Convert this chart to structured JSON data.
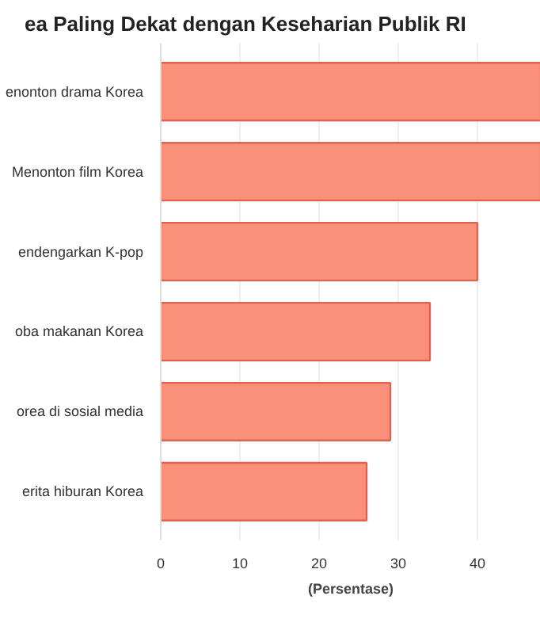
{
  "chart_data": {
    "type": "bar",
    "orientation": "horizontal",
    "title": "ea Paling Dekat dengan Keseharian Publik RI",
    "xlabel": "(Persentase)",
    "categories": [
      "enonton drama Korea",
      "Menonton film Korea",
      "endengarkan K-pop",
      "oba makanan Korea",
      "orea di sosial media",
      "erita hiburan Korea"
    ],
    "values": [
      48,
      48,
      40,
      34,
      29,
      26
    ],
    "color": "#fa9079",
    "xlim": [
      0,
      48
    ],
    "xticks": [
      0,
      10,
      20,
      30,
      40
    ],
    "grid": "x"
  }
}
